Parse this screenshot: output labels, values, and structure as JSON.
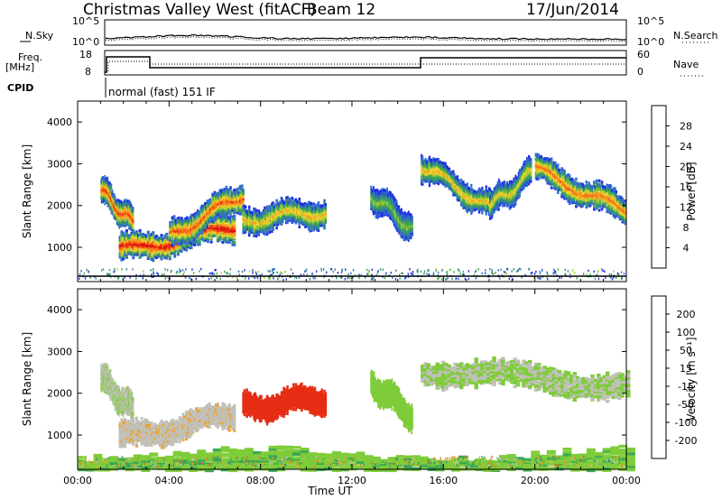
{
  "header": {
    "station": "Christmas Valley West (fitACF)",
    "beam": "Beam 12",
    "date": "17/Jun/2014"
  },
  "top_panels": {
    "noise": {
      "left_label": "N.Sky",
      "left_ticks": [
        "10^5",
        "10^0"
      ],
      "right_label": "N.Search",
      "right_ticks": [
        "10^5",
        "10^0"
      ]
    },
    "freq": {
      "left_label_1": "Freq.",
      "left_label_2": "[MHz]",
      "left_ticks": [
        "18",
        "8"
      ],
      "right_label": "Nave",
      "right_ticks": [
        "60",
        "0"
      ]
    },
    "cpid": {
      "label": "CPID",
      "mode": "normal (fast) 151 IF"
    }
  },
  "chart_data": [
    {
      "type": "heatmap",
      "panel": "power",
      "ylabel": "Slant Range [km]",
      "xlabel": "",
      "ylim": [
        180,
        4500
      ],
      "y_ticks": [
        "1000",
        "2000",
        "3000",
        "4000"
      ],
      "x_range_hours": [
        0,
        24
      ],
      "colorbar": {
        "label": "Power [dB]",
        "ticks": [
          "4",
          "8",
          "12",
          "16",
          "20",
          "24",
          "28"
        ],
        "range": [
          0,
          32
        ],
        "colors": [
          "#1f2fe0",
          "#2f6ed0",
          "#3a8a80",
          "#3aa855",
          "#aacc33",
          "#f0d030",
          "#f5a020",
          "#f56e18",
          "#e62d14",
          "#dd1010"
        ]
      },
      "echo_bands": [
        {
          "x": [
            1.0,
            2.4
          ],
          "range_km": [
            2400,
            1600
          ],
          "peak_db": 27
        },
        {
          "x": [
            1.8,
            6.8
          ],
          "range_km": [
            950,
            1500
          ],
          "peak_db": 30
        },
        {
          "x": [
            4.0,
            7.2
          ],
          "range_km": [
            1300,
            2300
          ],
          "peak_db": 26
        },
        {
          "x": [
            7.2,
            10.8
          ],
          "range_km": [
            1700,
            1900
          ],
          "peak_db": 20
        },
        {
          "x": [
            12.8,
            14.6
          ],
          "range_km": [
            2300,
            1500
          ],
          "peak_db": 14
        },
        {
          "x": [
            15.0,
            18.0
          ],
          "range_km": [
            3000,
            2000
          ],
          "peak_db": 20
        },
        {
          "x": [
            18.0,
            19.8
          ],
          "range_km": [
            2000,
            2800
          ],
          "peak_db": 18
        },
        {
          "x": [
            20.0,
            23.9
          ],
          "range_km": [
            2900,
            1900
          ],
          "peak_db": 24
        }
      ]
    },
    {
      "type": "heatmap",
      "panel": "velocity",
      "ylabel": "Slant Range [km]",
      "xlabel": "Time UT",
      "ylim": [
        180,
        4500
      ],
      "y_ticks": [
        "1000",
        "2000",
        "3000",
        "4000"
      ],
      "x_ticks": [
        "00:00",
        "04:00",
        "08:00",
        "12:00",
        "16:00",
        "20:00",
        "00:00"
      ],
      "x_range_hours": [
        0,
        24
      ],
      "colorbar": {
        "label": "Velocity [m s⁻¹]",
        "ticks": [
          "200",
          "100",
          "50",
          "15",
          "-15",
          "-50",
          "-100",
          "-200"
        ],
        "range": [
          -250,
          250
        ],
        "colors": [
          "#1f2fe0",
          "#2f6ed0",
          "#3a8a80",
          "#3aa855",
          "#7fcc3a",
          "#c0c0b8",
          "#f5a020",
          "#f56e18",
          "#e62d14",
          "#dd1010"
        ]
      },
      "echo_bands": [
        {
          "x": [
            1.0,
            2.4
          ],
          "range_km": [
            2400,
            1600
          ],
          "velocity": -5
        },
        {
          "x": [
            1.8,
            6.8
          ],
          "range_km": [
            950,
            1500
          ],
          "velocity": -40
        },
        {
          "x": [
            7.2,
            10.8
          ],
          "range_km": [
            1700,
            1900
          ],
          "velocity": -170
        },
        {
          "x": [
            12.8,
            14.6
          ],
          "range_km": [
            2300,
            1500
          ],
          "velocity": 30
        },
        {
          "x": [
            15.0,
            24.0
          ],
          "range_km": [
            2600,
            2200
          ],
          "velocity": 0
        },
        {
          "x": [
            0,
            24
          ],
          "range_km": [
            300,
            300
          ],
          "velocity": 40
        }
      ]
    }
  ],
  "colors": {
    "axis": "#000000",
    "background": "#ffffff"
  }
}
